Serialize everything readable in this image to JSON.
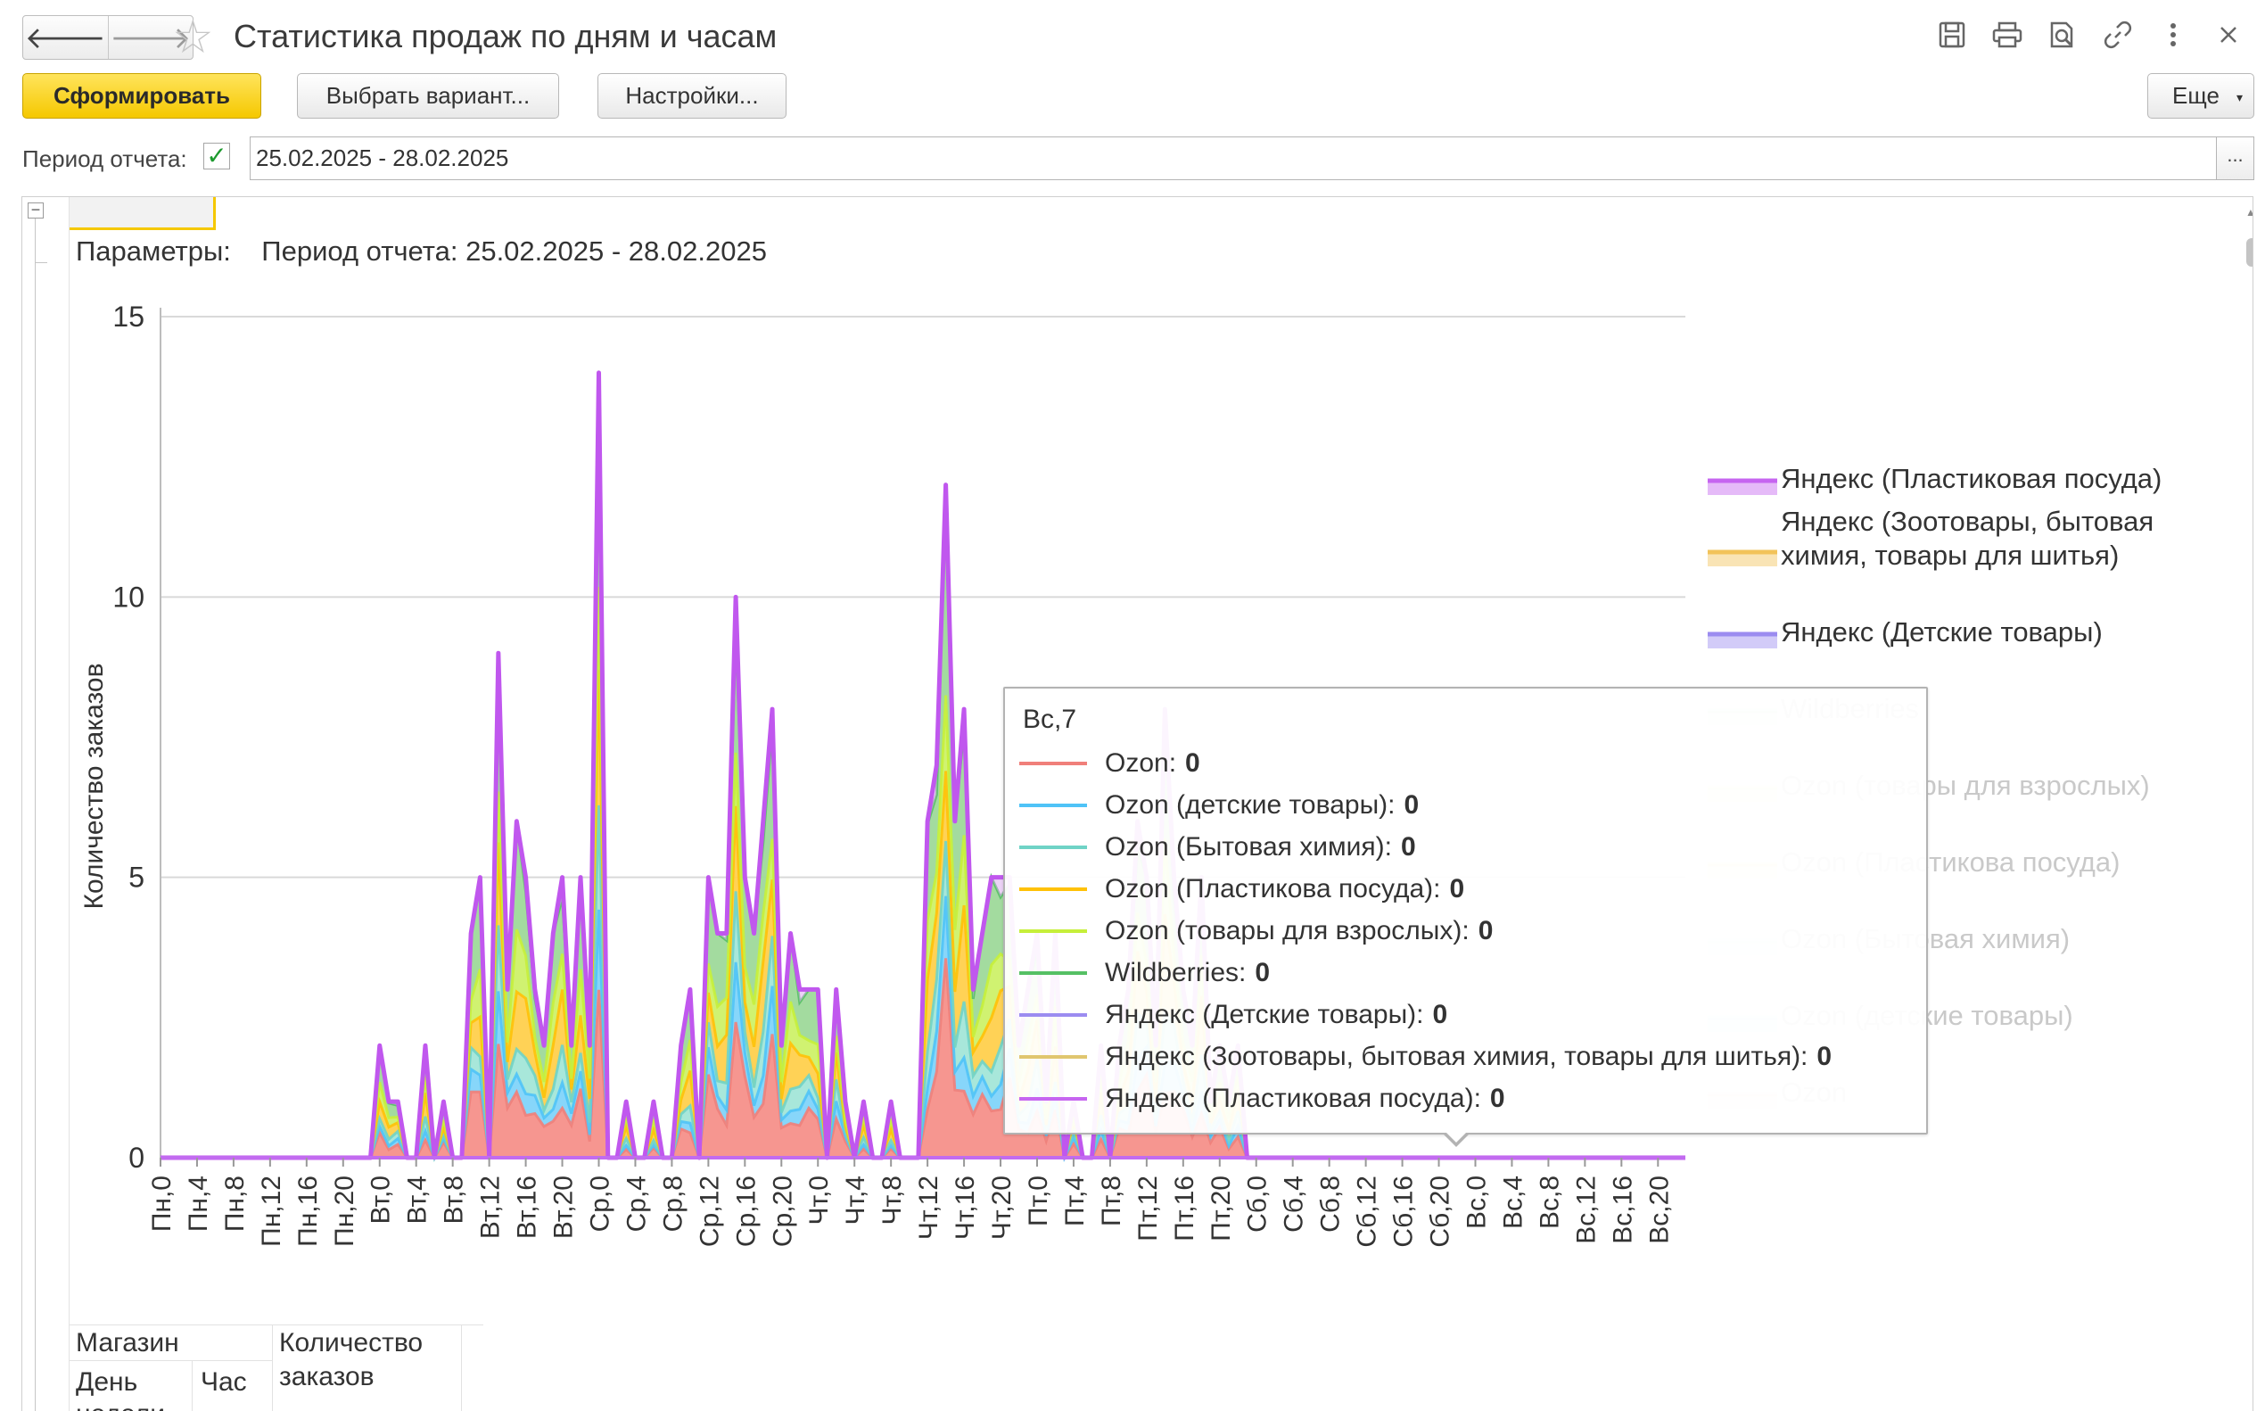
{
  "window": {
    "title": "Статистика продаж по дням и часам",
    "nav_back": "🡐",
    "nav_forward": "🡒"
  },
  "toolbar": {
    "generate_label": "Сформировать",
    "choose_variant_label": "Выбрать вариант...",
    "settings_label": "Настройки...",
    "more_label": "Еще"
  },
  "period": {
    "label": "Период отчета:",
    "checked": true,
    "value": "25.02.2025 - 28.02.2025",
    "dots": "..."
  },
  "report": {
    "params_text": "Параметры:    Период отчета: 25.02.2025 - 28.02.2025",
    "table": {
      "col_store": "Магазин",
      "col_orders": "Количество",
      "col_orders_2": "заказов",
      "col_day": "День",
      "col_day_2": "недели",
      "col_hour": "Час"
    }
  },
  "tooltip": {
    "title": "Вс,7",
    "rows": [
      {
        "label": "Ozon:",
        "value": "0",
        "color": "#f07f7a"
      },
      {
        "label": "Ozon  (детские товары):",
        "value": "0",
        "color": "#4fc3f7"
      },
      {
        "label": "Ozon (Бытовая химия):",
        "value": "0",
        "color": "#6fd3c6"
      },
      {
        "label": "Ozon (Пластикова посуда):",
        "value": "0",
        "color": "#ffc107"
      },
      {
        "label": "Ozon (товары для взрослых):",
        "value": "0",
        "color": "#c6ef3a"
      },
      {
        "label": "Wildberries:",
        "value": "0",
        "color": "#55c064"
      },
      {
        "label": "Яндекс (Детские товары):",
        "value": "0",
        "color": "#9b8cf0"
      },
      {
        "label": "Яндекс (Зоотовары, бытовая химия, товары для шитья):",
        "value": "0",
        "color": "#e0c66f"
      },
      {
        "label": "Яндекс (Пластиковая посуда):",
        "value": "0",
        "color": "#c665f0"
      }
    ]
  },
  "chart_data": {
    "type": "area",
    "ylabel": "Количество заказов",
    "ylim": [
      0,
      15
    ],
    "yticks": [
      0,
      5,
      10,
      15
    ],
    "stacked": true,
    "x_labels": [
      "Пн,0",
      "Пн,4",
      "Пн,8",
      "Пн,12",
      "Пн,16",
      "Пн,20",
      "Вт,0",
      "Вт,4",
      "Вт,8",
      "Вт,12",
      "Вт,16",
      "Вт,20",
      "Ср,0",
      "Ср,4",
      "Ср,8",
      "Ср,12",
      "Ср,16",
      "Ср,20",
      "Чт,0",
      "Чт,4",
      "Чт,8",
      "Чт,12",
      "Чт,16",
      "Чт,20",
      "Пт,0",
      "Пт,4",
      "Пт,8",
      "Пт,12",
      "Пт,16",
      "Пт,20",
      "Сб,0",
      "Сб,4",
      "Сб,8",
      "Сб,12",
      "Сб,16",
      "Сб,20",
      "Вс,0",
      "Вс,4",
      "Вс,8",
      "Вс,12",
      "Вс,16",
      "Вс,20"
    ],
    "legend_position": "right",
    "legend": [
      {
        "name": "Яндекс (Пластиковая посуда)",
        "color": "#c665f0"
      },
      {
        "name": "Яндекс (Зоотовары, бытовая химия, товары для шитья)",
        "color": "#f2c35a"
      },
      {
        "name": "Яндекс (Детские товары)",
        "color": "#9b8cf0"
      },
      {
        "name": "Wildberries",
        "color": "#8fd79a"
      },
      {
        "name": "Ozon (товары для взрослых)",
        "color": "#d6f56f"
      },
      {
        "name": "Ozon (Пластикова посуда)",
        "color": "#ffd54f"
      },
      {
        "name": "Ozon (Бытовая химия)",
        "color": "#9fe3d9"
      },
      {
        "name": "Ozon  (детские товары)",
        "color": "#81d4fa"
      },
      {
        "name": "Ozon",
        "color": "#f6a09b"
      }
    ],
    "total_per_hour": [
      0,
      0,
      0,
      0,
      0,
      0,
      0,
      0,
      0,
      0,
      0,
      0,
      0,
      0,
      0,
      0,
      0,
      0,
      0,
      0,
      0,
      0,
      0,
      0,
      2,
      1,
      1,
      0,
      0,
      2,
      0,
      1,
      0,
      0,
      4,
      5,
      0,
      9,
      3,
      6,
      5,
      3,
      2,
      4,
      5,
      2,
      5,
      2,
      14,
      0,
      0,
      1,
      0,
      0,
      1,
      0,
      0,
      2,
      3,
      0,
      5,
      4,
      4,
      10,
      5,
      4,
      6,
      8,
      2,
      4,
      3,
      3,
      3,
      0,
      3,
      1,
      0,
      1,
      0,
      0,
      1,
      0,
      0,
      0,
      6,
      7,
      12,
      6,
      8,
      3,
      4,
      5,
      5,
      5,
      2,
      3,
      4,
      1,
      4,
      0,
      1,
      0,
      0,
      2,
      0,
      2,
      3,
      6,
      5,
      2,
      8,
      5,
      3,
      2,
      5,
      1,
      2,
      1,
      2,
      0,
      0,
      0,
      0,
      0,
      0,
      0,
      0,
      0,
      0,
      0,
      0,
      0,
      0,
      0,
      0,
      0,
      0,
      0,
      0,
      0,
      0,
      0,
      0,
      0,
      0,
      0,
      0,
      0,
      0,
      0,
      0,
      0,
      0,
      0,
      0,
      0,
      0,
      0,
      0,
      0,
      0,
      0,
      0,
      0,
      0,
      0,
      0,
      0
    ]
  }
}
